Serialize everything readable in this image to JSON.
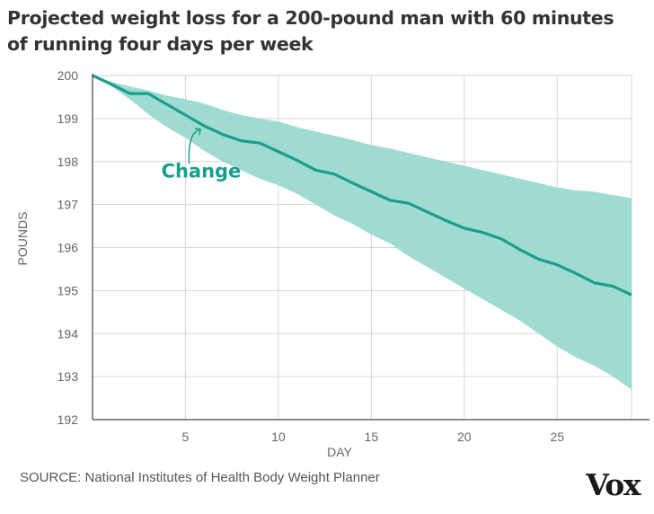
{
  "chart_data": {
    "type": "line",
    "title": "Projected weight loss for a 200-pound man with 60 minutes of running four days per week",
    "xlabel": "DAY",
    "ylabel": "POUNDS",
    "xlim": [
      0,
      29
    ],
    "ylim": [
      192,
      200
    ],
    "x_ticks": [
      5,
      10,
      15,
      20,
      25
    ],
    "y_ticks": [
      192,
      193,
      194,
      195,
      196,
      197,
      198,
      199,
      200
    ],
    "grid": true,
    "series": [
      {
        "name": "Change",
        "x": [
          0,
          1,
          2,
          3,
          4,
          5,
          6,
          7,
          8,
          9,
          10,
          11,
          12,
          13,
          14,
          15,
          16,
          17,
          18,
          19,
          20,
          21,
          22,
          23,
          24,
          25,
          26,
          27,
          28,
          29
        ],
        "values": [
          200,
          199.8,
          199.58,
          199.58,
          199.33,
          199.08,
          198.83,
          198.63,
          198.48,
          198.43,
          198.23,
          198.03,
          197.8,
          197.71,
          197.5,
          197.3,
          197.1,
          197.03,
          196.83,
          196.63,
          196.45,
          196.35,
          196.2,
          195.95,
          195.73,
          195.6,
          195.4,
          195.18,
          195.1,
          194.9
        ]
      }
    ],
    "band": {
      "x": [
        0,
        1,
        2,
        3,
        4,
        5,
        6,
        7,
        8,
        9,
        10,
        11,
        12,
        13,
        14,
        15,
        16,
        17,
        18,
        19,
        20,
        21,
        22,
        23,
        24,
        25,
        26,
        27,
        28,
        29
      ],
      "upper": [
        200,
        199.85,
        199.75,
        199.65,
        199.53,
        199.45,
        199.35,
        199.2,
        199.08,
        199.0,
        198.93,
        198.8,
        198.7,
        198.6,
        198.5,
        198.38,
        198.3,
        198.2,
        198.1,
        198.0,
        197.9,
        197.8,
        197.7,
        197.6,
        197.5,
        197.4,
        197.33,
        197.3,
        197.22,
        197.15
      ],
      "lower": [
        200,
        199.75,
        199.45,
        199.1,
        198.8,
        198.55,
        198.25,
        198.0,
        197.8,
        197.6,
        197.45,
        197.25,
        197.0,
        196.75,
        196.55,
        196.3,
        196.1,
        195.8,
        195.55,
        195.3,
        195.05,
        194.8,
        194.55,
        194.3,
        194.0,
        193.7,
        193.45,
        193.25,
        193.0,
        192.7
      ]
    },
    "annotation": "Change",
    "colors": {
      "line": "#1a9e8e",
      "band": "#9ad9cf",
      "grid": "#d5d5d5",
      "axis": "#444444"
    }
  },
  "source": "SOURCE: National Institutes of Health Body Weight Planner",
  "logo": "Vox"
}
